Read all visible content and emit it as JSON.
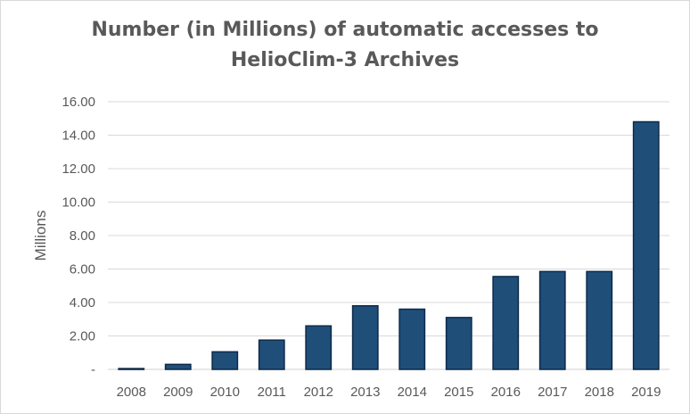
{
  "chart_data": {
    "type": "bar",
    "title_lines": [
      "Number (in Millions) of automatic accesses to",
      "HelioClim-3 Archives"
    ],
    "xlabel": "",
    "ylabel": "Millions",
    "categories": [
      "2008",
      "2009",
      "2010",
      "2011",
      "2012",
      "2013",
      "2014",
      "2015",
      "2016",
      "2017",
      "2018",
      "2019"
    ],
    "values": [
      0.05,
      0.3,
      1.05,
      1.75,
      2.6,
      3.8,
      3.6,
      3.1,
      5.55,
      5.85,
      5.85,
      14.8
    ],
    "ylim": [
      0,
      16
    ],
    "yticks": [
      0,
      2,
      4,
      6,
      8,
      10,
      12,
      14,
      16
    ],
    "ytick_labels": [
      "-",
      "2.00",
      "4.00",
      "6.00",
      "8.00",
      "10.00",
      "12.00",
      "14.00",
      "16.00"
    ],
    "grid": true,
    "legend": "none",
    "bar_color": "#1f4e79",
    "bar_edge_color": "#0d2a4a",
    "grid_color": "#d9d9d9"
  }
}
